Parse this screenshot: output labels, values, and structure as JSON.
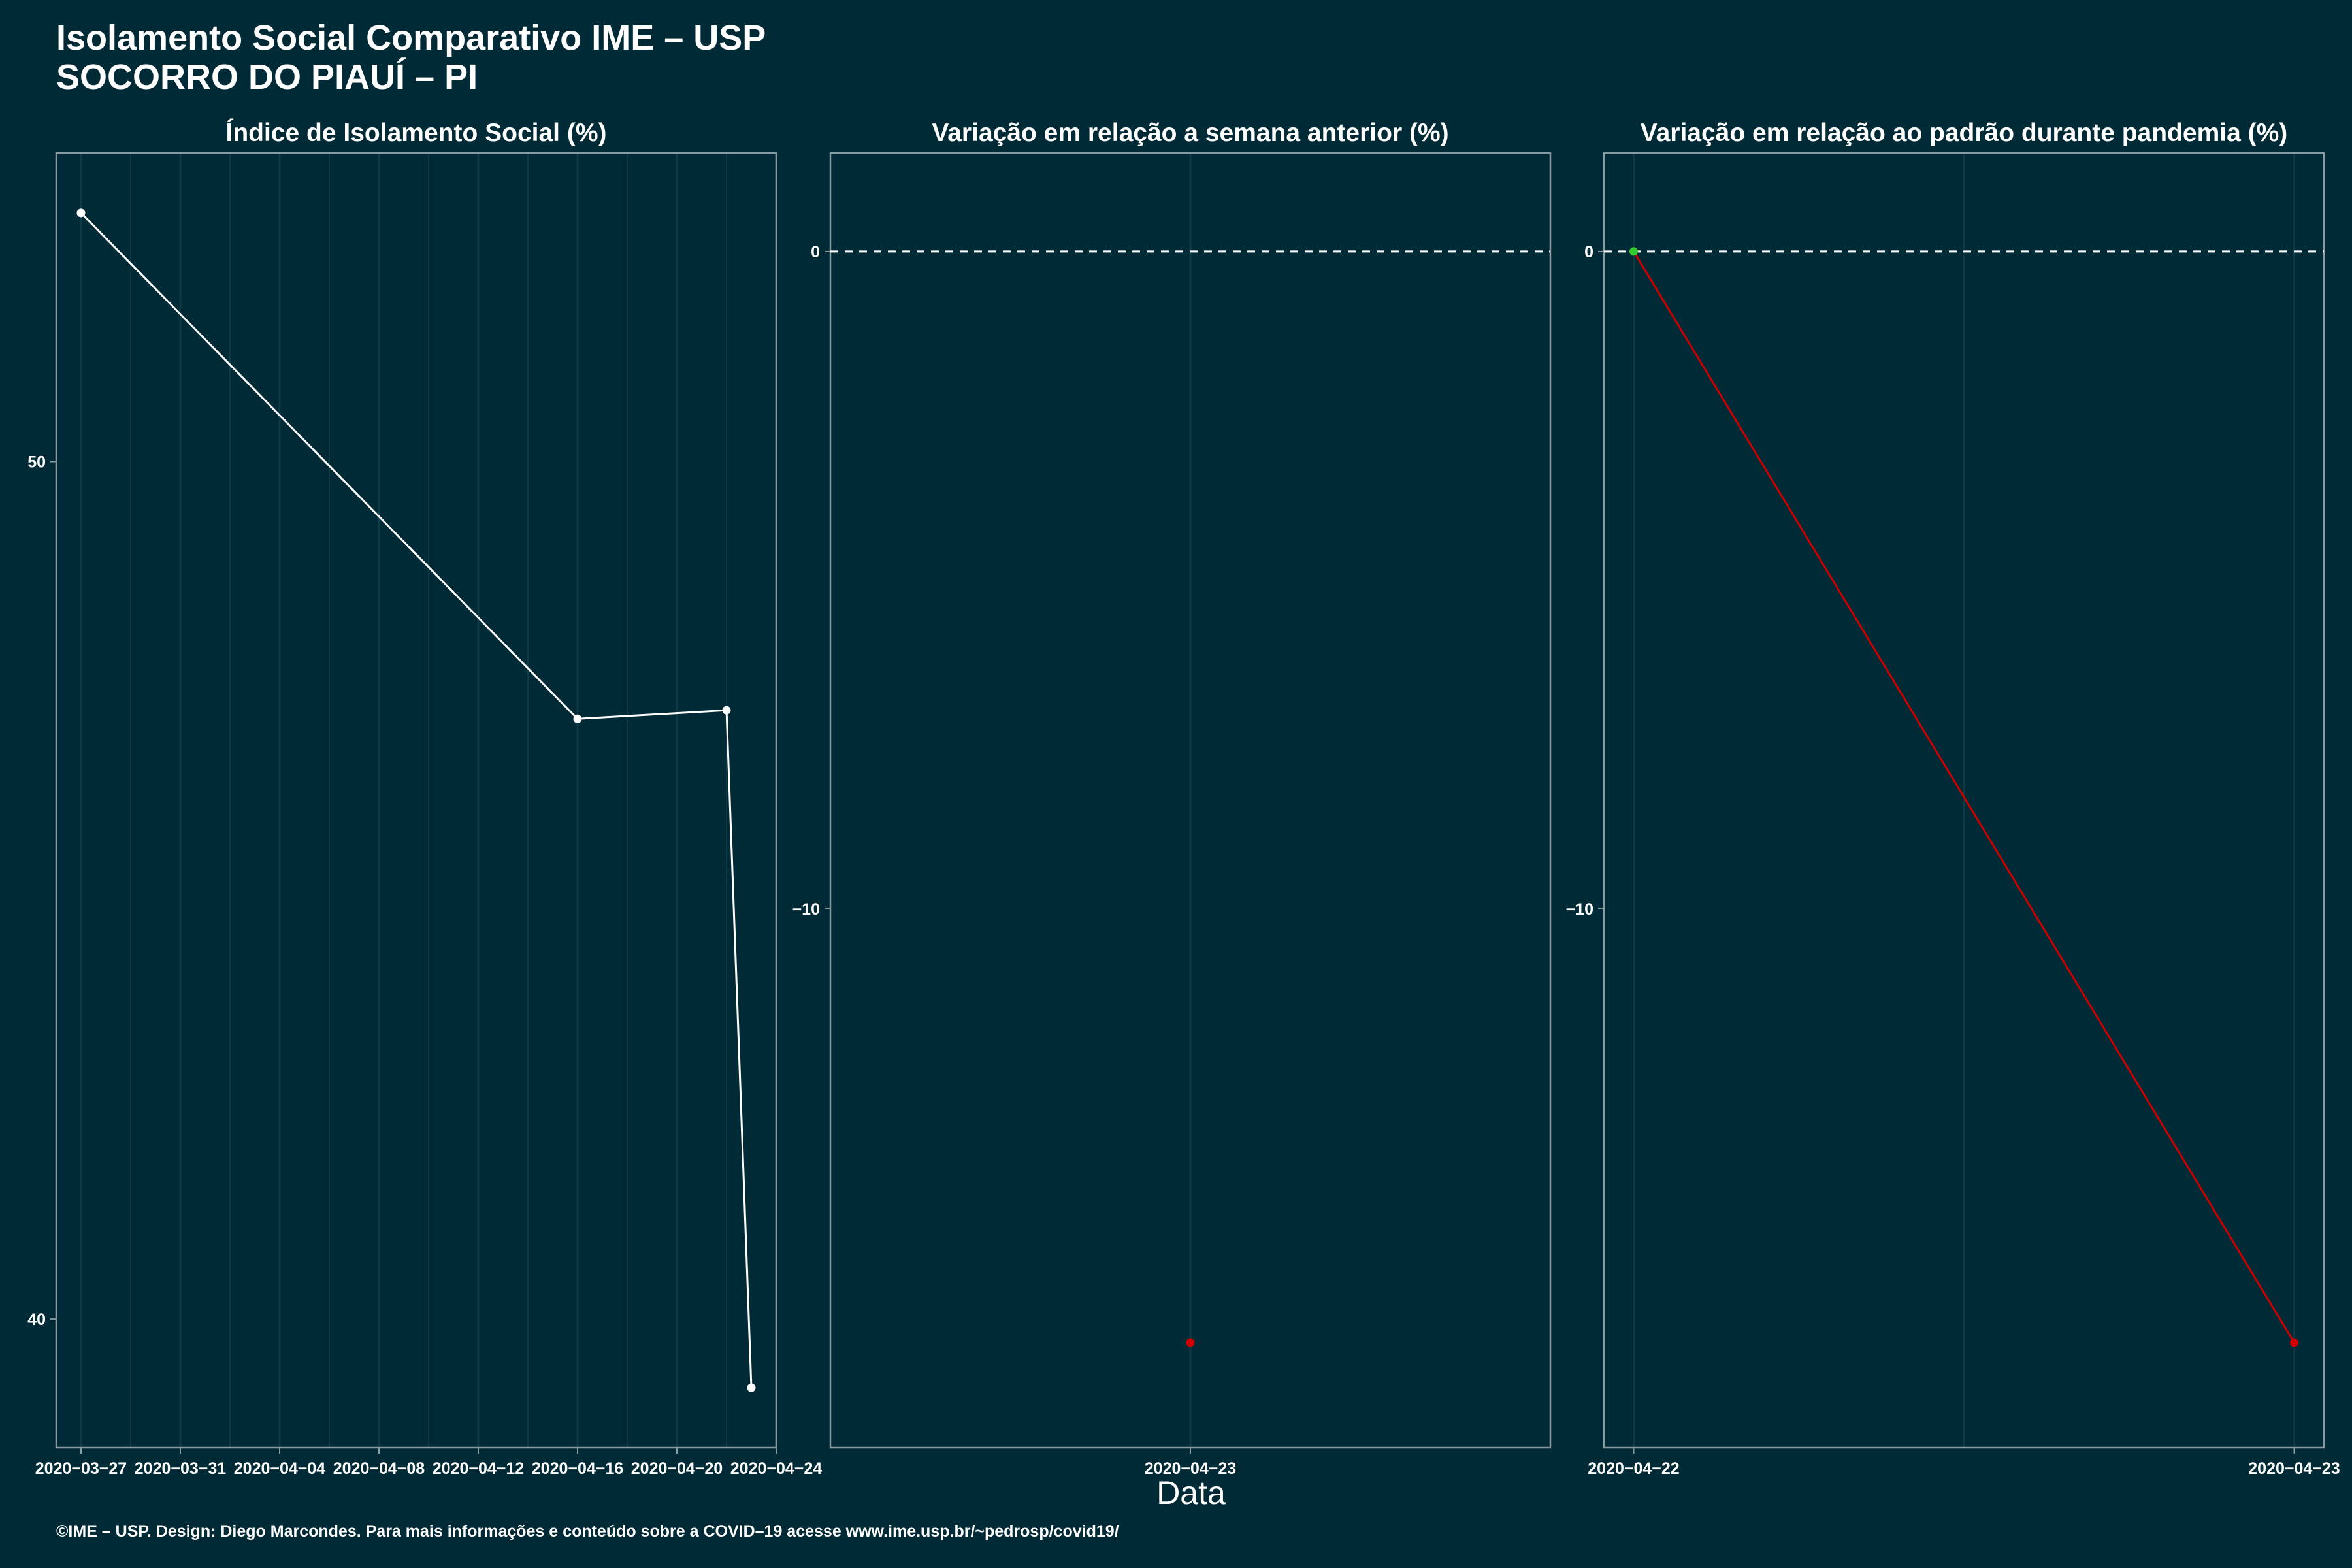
{
  "title": {
    "line1": "Isolamento Social Comparativo IME – USP",
    "line2": "SOCORRO DO PIAUÍ – PI"
  },
  "xlabel": "Data",
  "footer": "©IME – USP. Design: Diego Marcondes. Para mais informações e conteúdo sobre a COVID–19 acesse www.ime.usp.br/~pedrosp/covid19/",
  "colors": {
    "background": "#002b36",
    "panel_border": "#8a9aa0",
    "grid": "#0e3a45",
    "text": "#ffffff",
    "line_white": "#ffffff",
    "line_red": "#cc0000",
    "point_green": "#33cc33",
    "zero_line": "#ffffff"
  },
  "chart_data": [
    {
      "type": "line",
      "title": "Índice de Isolamento Social (%)",
      "x": [
        "2020-03-27",
        "2020-04-16",
        "2020-04-22",
        "2020-04-23"
      ],
      "y": [
        52.9,
        47.0,
        47.1,
        39.2
      ],
      "xticks": [
        "2020-03-27",
        "2020-03-31",
        "2020-04-04",
        "2020-04-08",
        "2020-04-12",
        "2020-04-16",
        "2020-04-20",
        "2020-04-24"
      ],
      "xlim": [
        "2020-03-26",
        "2020-04-24"
      ],
      "yticks": [
        40,
        50
      ],
      "ylim": [
        38.5,
        53.6
      ],
      "grid": true
    },
    {
      "type": "scatter",
      "title": "Variação em relação a semana anterior (%)",
      "x": [
        "2020-04-23"
      ],
      "y": [
        -16.6
      ],
      "xticks": [
        "2020-04-23"
      ],
      "yticks": [
        0,
        -10
      ],
      "ylim": [
        -18.2,
        1.5
      ],
      "reference_line": 0,
      "grid": true
    },
    {
      "type": "line",
      "title": "Variação em relação ao padrão durante pandemia (%)",
      "x": [
        "2020-04-22",
        "2020-04-23"
      ],
      "y": [
        0,
        -16.6
      ],
      "xticks": [
        "2020-04-22",
        "2020-04-23"
      ],
      "yticks": [
        0,
        -10
      ],
      "ylim": [
        -18.2,
        1.5
      ],
      "reference_line": 0,
      "grid": true
    }
  ]
}
